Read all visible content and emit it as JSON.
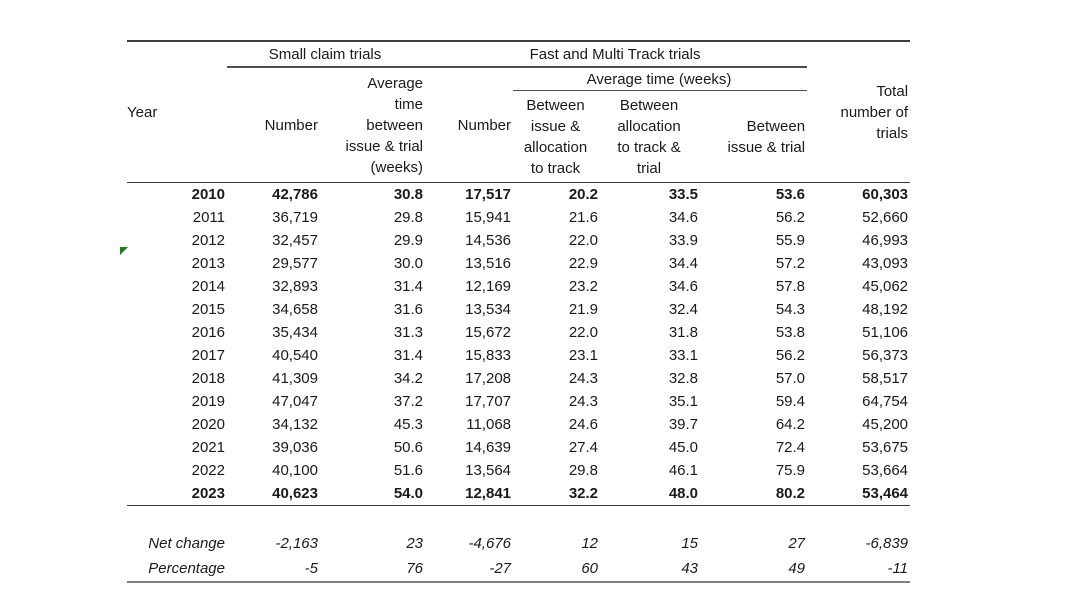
{
  "table": {
    "group_headers": {
      "small_claim": "Small claim trials",
      "fast_multi": "Fast and Multi Track trials",
      "avg_time": "Average time (weeks)"
    },
    "column_headers": {
      "year": "Year",
      "sc_number": "Number",
      "sc_avg_time": "Average\ntime\nbetween\nissue & trial\n(weeks)",
      "fm_number": "Number",
      "between_issue_allocation": "Between\nissue &\nallocation\nto track",
      "between_allocation_trial": "Between\nallocation\nto track &\ntrial",
      "between_issue_trial": "Between\nissue & trial",
      "total": "Total\nnumber of\ntrials"
    },
    "rows": [
      {
        "year": "2010",
        "values": [
          "42,786",
          "30.8",
          "17,517",
          "20.2",
          "33.5",
          "53.6",
          "60,303"
        ],
        "bold": true
      },
      {
        "year": "2011",
        "values": [
          "36,719",
          "29.8",
          "15,941",
          "21.6",
          "34.6",
          "56.2",
          "52,660"
        ]
      },
      {
        "year": "2012",
        "values": [
          "32,457",
          "29.9",
          "14,536",
          "22.0",
          "33.9",
          "55.9",
          "46,993"
        ]
      },
      {
        "year": "2013",
        "values": [
          "29,577",
          "30.0",
          "13,516",
          "22.9",
          "34.4",
          "57.2",
          "43,093"
        ],
        "flag": true
      },
      {
        "year": "2014",
        "values": [
          "32,893",
          "31.4",
          "12,169",
          "23.2",
          "34.6",
          "57.8",
          "45,062"
        ]
      },
      {
        "year": "2015",
        "values": [
          "34,658",
          "31.6",
          "13,534",
          "21.9",
          "32.4",
          "54.3",
          "48,192"
        ]
      },
      {
        "year": "2016",
        "values": [
          "35,434",
          "31.3",
          "15,672",
          "22.0",
          "31.8",
          "53.8",
          "51,106"
        ]
      },
      {
        "year": "2017",
        "values": [
          "40,540",
          "31.4",
          "15,833",
          "23.1",
          "33.1",
          "56.2",
          "56,373"
        ]
      },
      {
        "year": "2018",
        "values": [
          "41,309",
          "34.2",
          "17,208",
          "24.3",
          "32.8",
          "57.0",
          "58,517"
        ]
      },
      {
        "year": "2019",
        "values": [
          "47,047",
          "37.2",
          "17,707",
          "24.3",
          "35.1",
          "59.4",
          "64,754"
        ]
      },
      {
        "year": "2020",
        "values": [
          "34,132",
          "45.3",
          "11,068",
          "24.6",
          "39.7",
          "64.2",
          "45,200"
        ]
      },
      {
        "year": "2021",
        "values": [
          "39,036",
          "50.6",
          "14,639",
          "27.4",
          "45.0",
          "72.4",
          "53,675"
        ]
      },
      {
        "year": "2022",
        "values": [
          "40,100",
          "51.6",
          "13,564",
          "29.8",
          "46.1",
          "75.9",
          "53,664"
        ]
      },
      {
        "year": "2023",
        "values": [
          "40,623",
          "54.0",
          "12,841",
          "32.2",
          "48.0",
          "80.2",
          "53,464"
        ],
        "bold": true
      }
    ],
    "summary_rows": [
      {
        "label": "Net change",
        "values": [
          "-2,163",
          "23",
          "-4,676",
          "12",
          "15",
          "27",
          "-6,839"
        ]
      },
      {
        "label": "Percentage",
        "values": [
          "-5",
          "76",
          "-27",
          "60",
          "43",
          "49",
          "-11"
        ]
      }
    ]
  },
  "colors": {
    "flag_green": "#1e7e1e",
    "line_dark": "#3c3c3c",
    "line_bottom_gray": "#7f7f7f",
    "text": "#1a1a1a"
  }
}
